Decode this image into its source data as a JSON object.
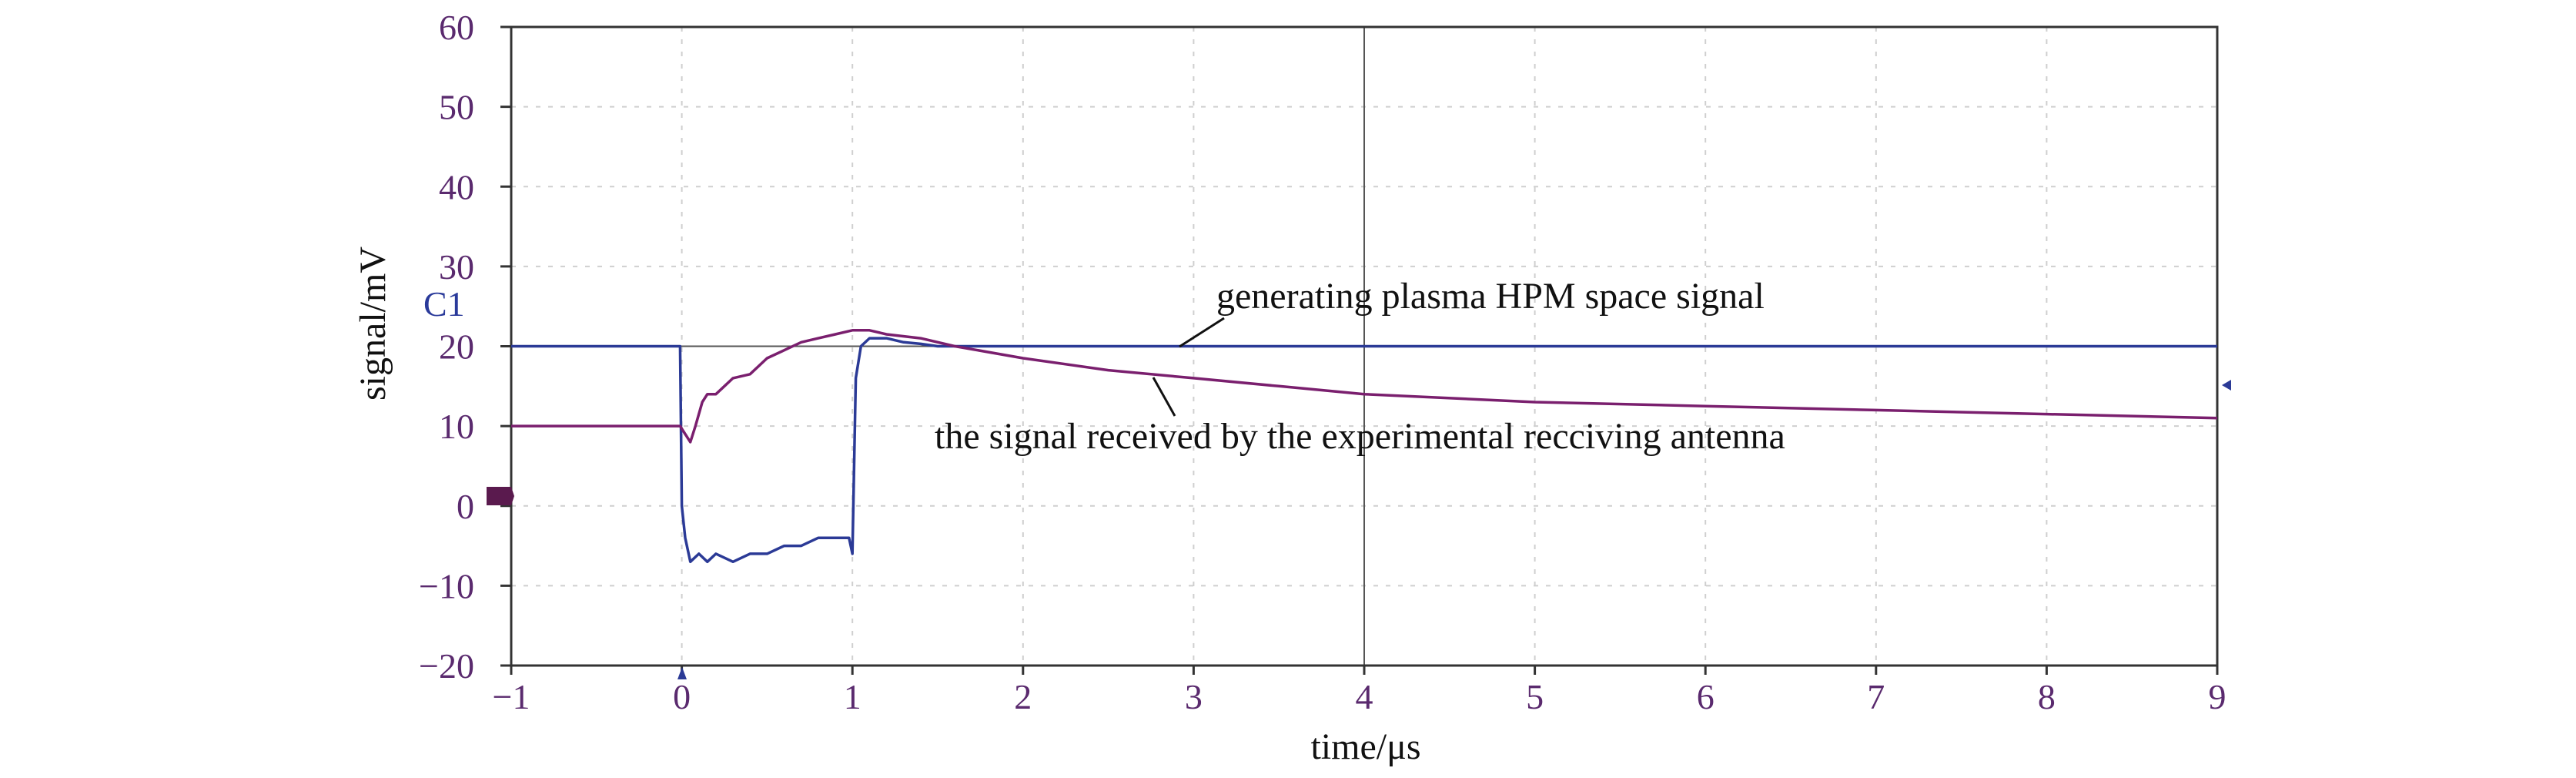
{
  "chart_data": {
    "type": "line",
    "xlabel": "time/μs",
    "ylabel": "signal/mV",
    "xlim": [
      -1,
      9
    ],
    "ylim": [
      -20,
      60
    ],
    "x_ticks": [
      "−1",
      "0",
      "1",
      "2",
      "3",
      "4",
      "5",
      "6",
      "7",
      "8",
      "9"
    ],
    "y_ticks": [
      "−20",
      "−10",
      "0",
      "10",
      "20",
      "30",
      "40",
      "50",
      "60"
    ],
    "grid": true,
    "channel_label": "C1",
    "colors": {
      "blue": "#2b3a96",
      "purple": "#7a1f6e"
    },
    "series": [
      {
        "color": "#2b3a96",
        "x": [
          -1.0,
          -0.01,
          0.0,
          0.02,
          0.05,
          0.1,
          0.15,
          0.2,
          0.3,
          0.4,
          0.5,
          0.6,
          0.7,
          0.8,
          0.9,
          0.98,
          1.0,
          1.02,
          1.05,
          1.1,
          1.2,
          1.3,
          1.4,
          1.5,
          2.0,
          3.0,
          4.0,
          5.0,
          6.0,
          7.0,
          8.0,
          9.0
        ],
        "y": [
          20,
          20,
          0,
          -4,
          -7,
          -6,
          -7,
          -6,
          -7,
          -6,
          -6,
          -5,
          -5,
          -4,
          -4,
          -4,
          -6,
          16,
          20,
          21,
          21,
          20.5,
          20.3,
          20,
          20,
          20,
          20,
          20,
          20,
          20,
          20,
          20
        ]
      },
      {
        "color": "#7a1f6e",
        "x": [
          -1.0,
          -0.01,
          0.02,
          0.05,
          0.08,
          0.12,
          0.15,
          0.2,
          0.25,
          0.3,
          0.4,
          0.5,
          0.6,
          0.7,
          0.8,
          0.9,
          1.0,
          1.1,
          1.2,
          1.4,
          1.6,
          2.0,
          2.5,
          3.0,
          3.5,
          4.0,
          5.0,
          6.0,
          7.0,
          8.0,
          9.0
        ],
        "y": [
          10,
          10,
          9,
          8,
          10,
          13,
          14,
          14,
          15,
          16,
          16.5,
          18.5,
          19.5,
          20.5,
          21,
          21.5,
          22,
          22,
          21.5,
          21,
          20,
          18.5,
          17,
          16,
          15,
          14,
          13,
          12.5,
          12,
          11.5,
          11
        ]
      }
    ],
    "annotations": [
      "generating plasma HPM space signal",
      "the signal received by the experimental recciving antenna"
    ]
  }
}
